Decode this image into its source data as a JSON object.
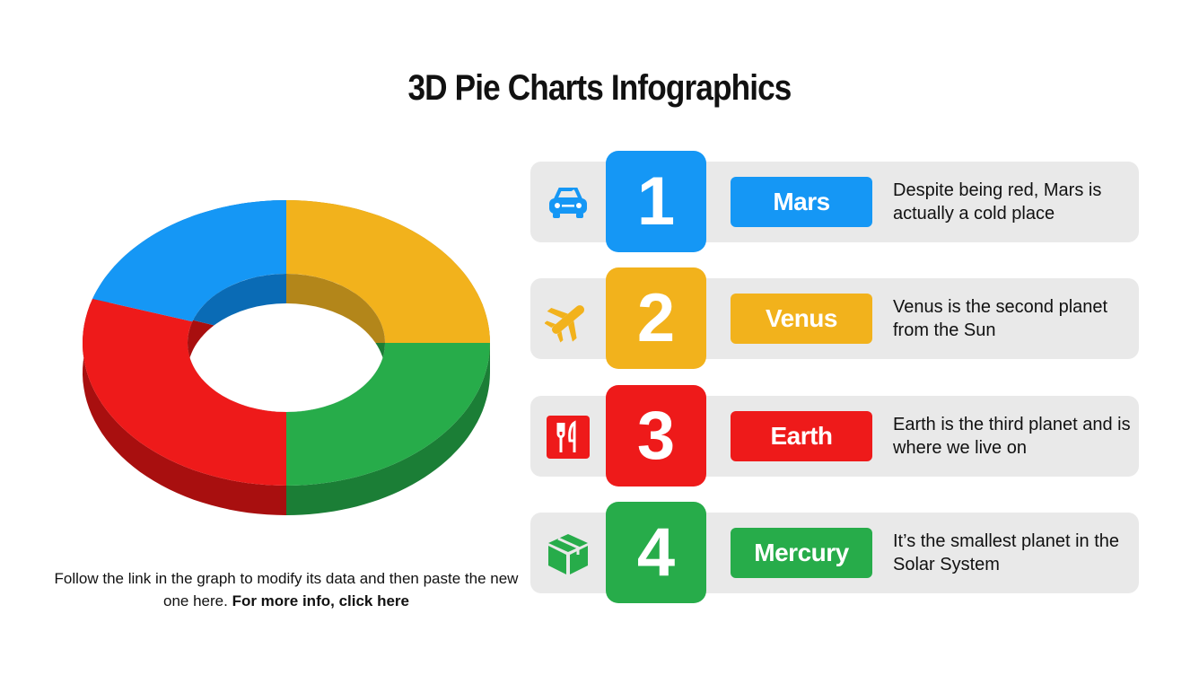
{
  "title": "3D Pie Charts Infographics",
  "footer": {
    "text": "Follow the link in the graph to modify its data and then paste the new one here.",
    "link": "For more info, click here"
  },
  "items": [
    {
      "number": "1",
      "label": "Mars",
      "description": "Despite being red, Mars is actually a cold place",
      "color": "#1597f5",
      "icon": "car-icon"
    },
    {
      "number": "2",
      "label": "Venus",
      "description": "Venus is the second planet from the Sun",
      "color": "#f2b21c",
      "icon": "airplane-icon"
    },
    {
      "number": "3",
      "label": "Earth",
      "description": "Earth is the third planet and is where we live on",
      "color": "#ee1a1a",
      "icon": "utensils-icon"
    },
    {
      "number": "4",
      "label": "Mercury",
      "description": "It’s the smallest planet in the Solar System",
      "color": "#27ac4a",
      "icon": "box-icon"
    }
  ],
  "chart_data": {
    "type": "pie",
    "style": "3d-donut",
    "start": "top, clockwise",
    "values": [
      25,
      25,
      30,
      20
    ],
    "colors": [
      "#f2b21c",
      "#27ac4a",
      "#ee1a1a",
      "#1597f5"
    ],
    "side_colors": [
      "#b3861a",
      "#1b7e36",
      "#a80f0f",
      "#0a6bb5"
    ]
  }
}
